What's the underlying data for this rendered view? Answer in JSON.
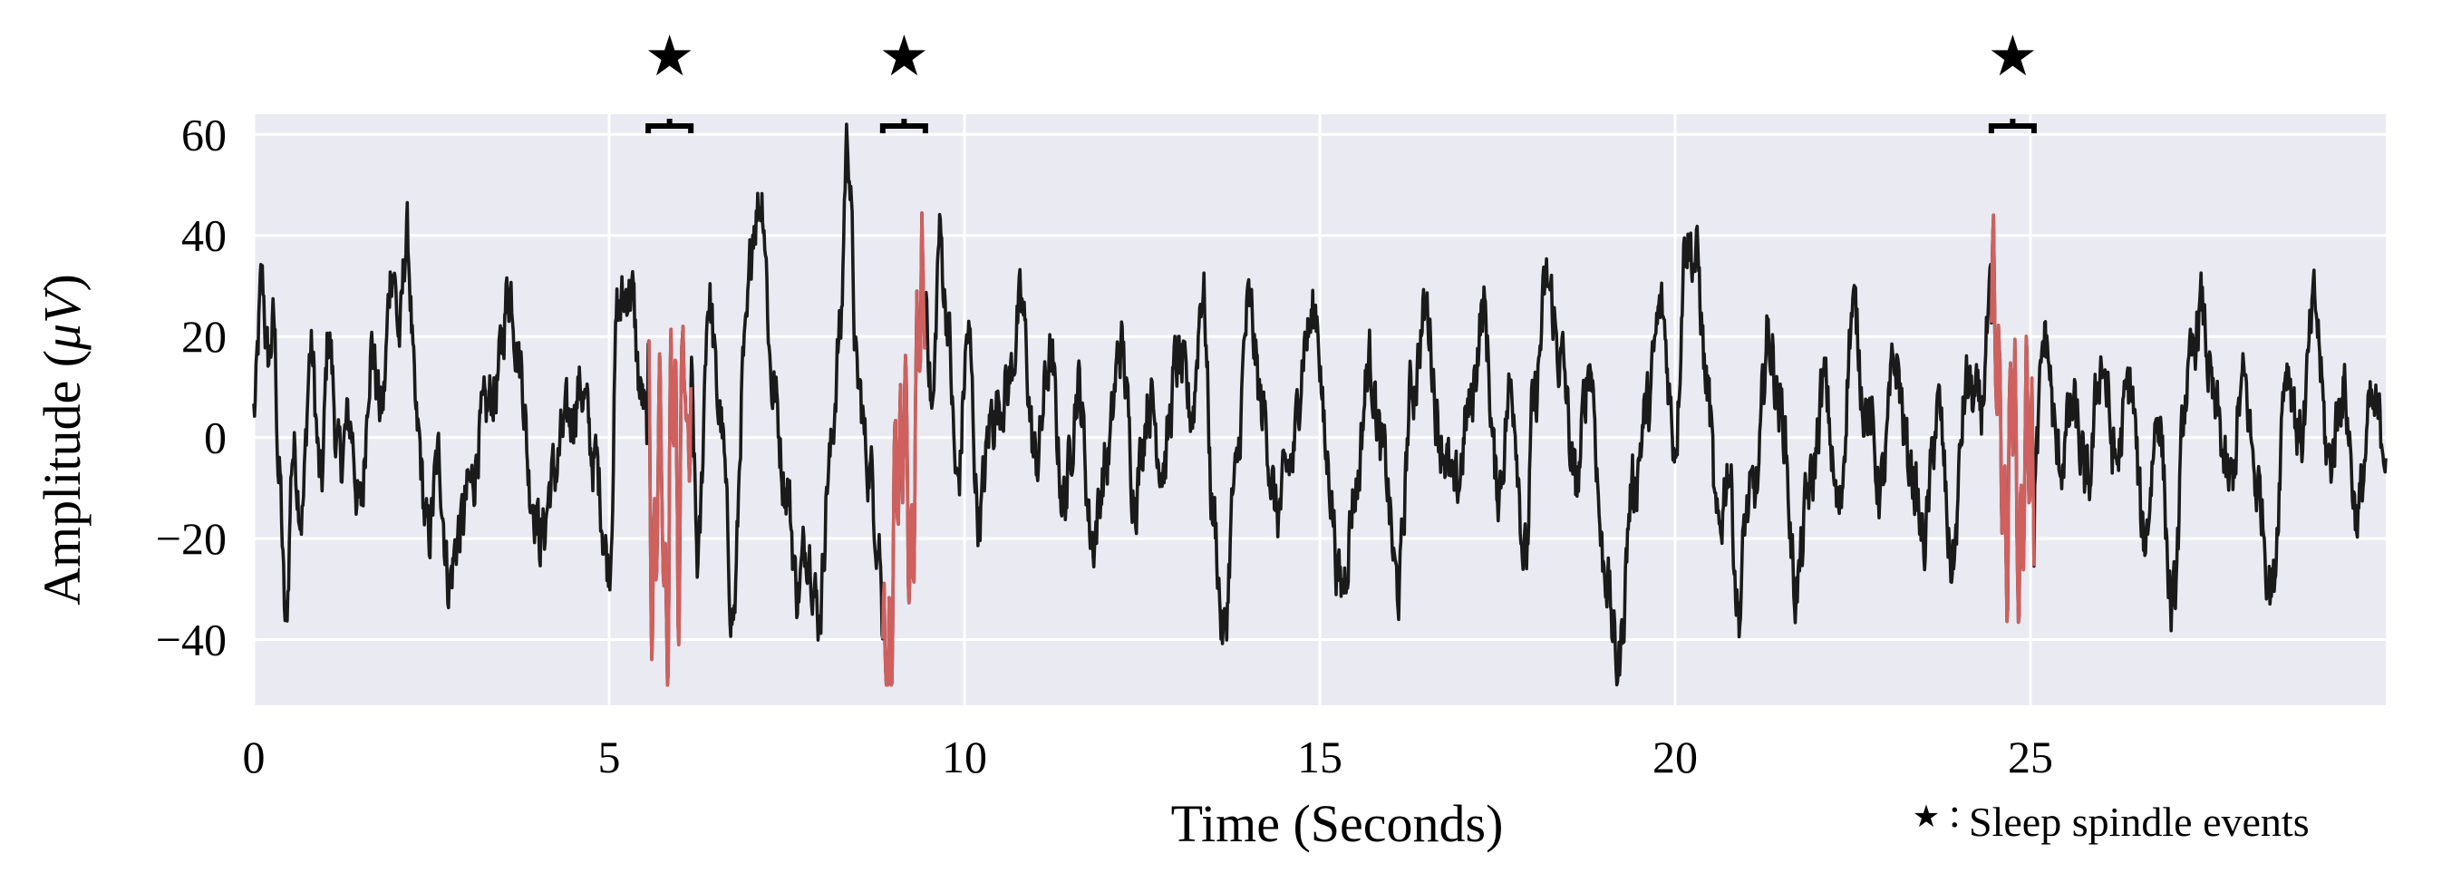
{
  "chart_data": {
    "type": "line",
    "title": "",
    "xlabel": "Time (Seconds)",
    "ylabel_main": "Amplitude (",
    "ylabel_unit": "μV",
    "ylabel_close": ")",
    "xlim": [
      0,
      30
    ],
    "ylim": [
      -53,
      64
    ],
    "xticks": [
      0,
      5,
      10,
      15,
      20,
      25
    ],
    "xtick_labels": [
      "0",
      "5",
      "10",
      "15",
      "20",
      "25"
    ],
    "yticks": [
      60,
      40,
      20,
      0,
      -20,
      -40
    ],
    "ytick_labels": [
      "60",
      "40",
      "20",
      "0",
      "−20",
      "−40"
    ],
    "grid": true,
    "background": "#EAEAF2",
    "signal_color": "#1a1a1a",
    "spindle_color": "#D0605E",
    "star_color": "#000000",
    "sample_rate_hz": 100,
    "spindle_events": [
      {
        "start": 5.55,
        "end": 6.15
      },
      {
        "start": 8.85,
        "end": 9.45
      },
      {
        "start": 24.45,
        "end": 25.05
      }
    ],
    "stars": [
      "★",
      "★",
      "★"
    ],
    "legend": {
      "symbol": "★",
      "separator": ":",
      "label": "Sleep spindle events",
      "placement": "bottom-right"
    },
    "anchors": [
      [
        0.0,
        5
      ],
      [
        0.12,
        30
      ],
      [
        0.2,
        15
      ],
      [
        0.28,
        22
      ],
      [
        0.36,
        -8
      ],
      [
        0.45,
        -38
      ],
      [
        0.55,
        -2
      ],
      [
        0.68,
        -14
      ],
      [
        0.8,
        17
      ],
      [
        0.95,
        -10
      ],
      [
        1.05,
        20
      ],
      [
        1.2,
        -5
      ],
      [
        1.35,
        3
      ],
      [
        1.5,
        -15
      ],
      [
        1.65,
        18
      ],
      [
        1.8,
        5
      ],
      [
        1.95,
        35
      ],
      [
        2.05,
        20
      ],
      [
        2.15,
        40
      ],
      [
        2.3,
        0
      ],
      [
        2.45,
        -20
      ],
      [
        2.6,
        -5
      ],
      [
        2.75,
        -28
      ],
      [
        2.9,
        -18
      ],
      [
        3.05,
        -10
      ],
      [
        3.2,
        2
      ],
      [
        3.4,
        10
      ],
      [
        3.6,
        30
      ],
      [
        3.75,
        15
      ],
      [
        3.9,
        -10
      ],
      [
        4.05,
        -20
      ],
      [
        4.2,
        -8
      ],
      [
        4.4,
        2
      ],
      [
        4.6,
        10
      ],
      [
        4.8,
        -5
      ],
      [
        5.0,
        -25
      ],
      [
        5.12,
        25
      ],
      [
        5.3,
        30
      ],
      [
        5.45,
        8
      ],
      [
        5.55,
        0
      ],
      [
        5.62,
        -30
      ],
      [
        5.72,
        5
      ],
      [
        5.8,
        -40
      ],
      [
        5.9,
        12
      ],
      [
        5.98,
        -28
      ],
      [
        6.05,
        22
      ],
      [
        6.1,
        -10
      ],
      [
        6.15,
        10
      ],
      [
        6.25,
        -25
      ],
      [
        6.4,
        28
      ],
      [
        6.55,
        5
      ],
      [
        6.75,
        -35
      ],
      [
        6.9,
        15
      ],
      [
        7.05,
        45
      ],
      [
        7.15,
        48
      ],
      [
        7.3,
        10
      ],
      [
        7.5,
        -10
      ],
      [
        7.65,
        -30
      ],
      [
        7.8,
        -20
      ],
      [
        7.95,
        -35
      ],
      [
        8.1,
        -5
      ],
      [
        8.25,
        20
      ],
      [
        8.35,
        60
      ],
      [
        8.5,
        10
      ],
      [
        8.65,
        -5
      ],
      [
        8.8,
        -20
      ],
      [
        8.85,
        -38
      ],
      [
        8.95,
        -46
      ],
      [
        9.05,
        -10
      ],
      [
        9.15,
        5
      ],
      [
        9.25,
        -30
      ],
      [
        9.35,
        20
      ],
      [
        9.45,
        30
      ],
      [
        9.55,
        5
      ],
      [
        9.65,
        40
      ],
      [
        9.75,
        25
      ],
      [
        9.9,
        -10
      ],
      [
        10.05,
        20
      ],
      [
        10.2,
        -15
      ],
      [
        10.4,
        5
      ],
      [
        10.6,
        10
      ],
      [
        10.8,
        25
      ],
      [
        11.0,
        -5
      ],
      [
        11.2,
        15
      ],
      [
        11.4,
        -12
      ],
      [
        11.6,
        10
      ],
      [
        11.8,
        -20
      ],
      [
        12.0,
        -5
      ],
      [
        12.2,
        18
      ],
      [
        12.4,
        -10
      ],
      [
        12.6,
        8
      ],
      [
        12.8,
        -5
      ],
      [
        13.0,
        15
      ],
      [
        13.2,
        5
      ],
      [
        13.35,
        30
      ],
      [
        13.5,
        -15
      ],
      [
        13.65,
        -40
      ],
      [
        13.8,
        -10
      ],
      [
        14.0,
        25
      ],
      [
        14.2,
        5
      ],
      [
        14.4,
        -15
      ],
      [
        14.6,
        -5
      ],
      [
        14.8,
        20
      ],
      [
        14.95,
        25
      ],
      [
        15.1,
        -5
      ],
      [
        15.3,
        -30
      ],
      [
        15.5,
        -10
      ],
      [
        15.7,
        15
      ],
      [
        15.9,
        -5
      ],
      [
        16.1,
        -30
      ],
      [
        16.3,
        10
      ],
      [
        16.5,
        25
      ],
      [
        16.7,
        0
      ],
      [
        16.9,
        -12
      ],
      [
        17.1,
        5
      ],
      [
        17.3,
        25
      ],
      [
        17.5,
        -10
      ],
      [
        17.7,
        10
      ],
      [
        17.9,
        -25
      ],
      [
        18.0,
        5
      ],
      [
        18.2,
        30
      ],
      [
        18.4,
        15
      ],
      [
        18.6,
        -10
      ],
      [
        18.8,
        15
      ],
      [
        19.0,
        -25
      ],
      [
        19.2,
        -45
      ],
      [
        19.4,
        -10
      ],
      [
        19.6,
        5
      ],
      [
        19.8,
        25
      ],
      [
        20.0,
        0
      ],
      [
        20.15,
        40
      ],
      [
        20.3,
        35
      ],
      [
        20.45,
        10
      ],
      [
        20.6,
        -20
      ],
      [
        20.75,
        -5
      ],
      [
        20.9,
        -35
      ],
      [
        21.0,
        -15
      ],
      [
        21.15,
        -10
      ],
      [
        21.3,
        20
      ],
      [
        21.5,
        5
      ],
      [
        21.7,
        -30
      ],
      [
        21.9,
        -10
      ],
      [
        22.1,
        10
      ],
      [
        22.3,
        -15
      ],
      [
        22.5,
        25
      ],
      [
        22.7,
        5
      ],
      [
        22.9,
        -10
      ],
      [
        23.1,
        15
      ],
      [
        23.3,
        -5
      ],
      [
        23.5,
        -20
      ],
      [
        23.7,
        5
      ],
      [
        23.9,
        -25
      ],
      [
        24.1,
        10
      ],
      [
        24.3,
        5
      ],
      [
        24.4,
        20
      ],
      [
        24.45,
        28
      ],
      [
        24.55,
        10
      ],
      [
        24.65,
        -25
      ],
      [
        24.75,
        15
      ],
      [
        24.85,
        -30
      ],
      [
        24.95,
        10
      ],
      [
        25.05,
        -10
      ],
      [
        25.2,
        20
      ],
      [
        25.4,
        -5
      ],
      [
        25.6,
        5
      ],
      [
        25.8,
        -10
      ],
      [
        26.0,
        15
      ],
      [
        26.2,
        -5
      ],
      [
        26.4,
        10
      ],
      [
        26.6,
        -20
      ],
      [
        26.8,
        5
      ],
      [
        27.0,
        -35
      ],
      [
        27.2,
        10
      ],
      [
        27.4,
        25
      ],
      [
        27.6,
        5
      ],
      [
        27.8,
        -10
      ],
      [
        28.0,
        10
      ],
      [
        28.2,
        -10
      ],
      [
        28.4,
        -30
      ],
      [
        28.6,
        15
      ],
      [
        28.8,
        0
      ],
      [
        29.0,
        25
      ],
      [
        29.2,
        -5
      ],
      [
        29.4,
        10
      ],
      [
        29.6,
        -15
      ],
      [
        29.8,
        5
      ],
      [
        30.0,
        0
      ]
    ]
  }
}
